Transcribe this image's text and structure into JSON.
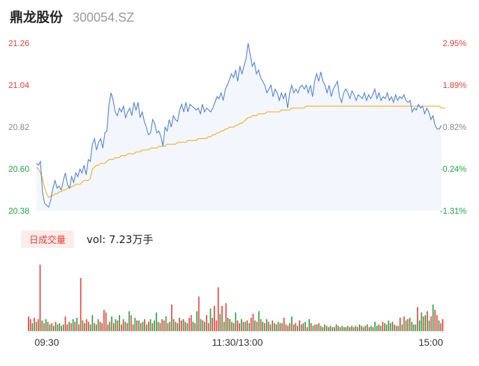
{
  "header": {
    "name": "鼎龙股份",
    "code": "300054.SZ"
  },
  "volume_header": {
    "tag": "日成交量",
    "text": "vol: 7.23万手"
  },
  "colors": {
    "price_line": "#4d7fd9",
    "avg_line": "#f0b429",
    "up": "#e8413a",
    "down": "#1aa843",
    "axis_label": "#888888"
  },
  "chart_data": [
    {
      "type": "line",
      "y_ticks_left": [
        "21.26",
        "21.04",
        "20.82",
        "20.60",
        "20.38"
      ],
      "y_ticks_right": [
        "2.95%",
        "1.89%",
        "0.82%",
        "-0.24%",
        "-1.31%"
      ],
      "right_tick_colors": [
        "#e8413a",
        "#e8413a",
        "#888888",
        "#1aa843",
        "#1aa843"
      ],
      "left_tick_colors": [
        "#e8413a",
        "#e8413a",
        "#888888",
        "#1aa843",
        "#1aa843"
      ],
      "ylim": [
        20.38,
        21.26
      ],
      "grid": false,
      "series": [
        {
          "values": [
            20.63,
            20.62,
            20.64,
            20.48,
            20.42,
            20.41,
            20.4,
            20.44,
            20.5,
            20.54,
            20.5,
            20.51,
            20.49,
            20.54,
            20.58,
            20.52,
            20.5,
            20.56,
            20.53,
            20.58,
            20.56,
            20.6,
            20.58,
            20.62,
            20.57,
            20.65,
            20.64,
            20.73,
            20.76,
            20.7,
            20.74,
            20.76,
            20.71,
            20.79,
            20.8,
            20.94,
            21.0,
            20.96,
            20.9,
            20.88,
            20.92,
            20.9,
            20.93,
            20.87,
            20.9,
            20.92,
            20.88,
            20.95,
            20.91,
            20.95,
            20.87,
            20.9,
            20.85,
            20.82,
            20.78,
            20.79,
            20.86,
            20.84,
            20.79,
            20.8,
            20.77,
            20.72,
            20.82,
            20.8,
            20.86,
            20.82,
            20.88,
            20.86,
            20.85,
            20.91,
            20.94,
            20.9,
            20.95,
            20.9,
            20.94,
            20.93,
            20.92,
            20.91,
            20.92,
            20.89,
            20.94,
            20.9,
            20.92,
            20.91,
            20.9,
            20.92,
            20.95,
            20.98,
            20.97,
            21.0,
            20.96,
            21.02,
            21.04,
            21.07,
            21.1,
            21.08,
            21.12,
            21.06,
            21.14,
            21.1,
            21.14,
            21.18,
            21.26,
            21.2,
            21.14,
            21.16,
            21.1,
            21.12,
            21.08,
            21.06,
            21.04,
            21.0,
            21.02,
            21.04,
            20.98,
            21.02,
            21.0,
            20.96,
            21.0,
            20.97,
            21.0,
            20.92,
            21.0,
            21.04,
            21.0,
            21.02,
            21.0,
            21.03,
            21.04,
            21.02,
            21.04,
            21.0,
            21.04,
            20.98,
            21.06,
            21.1,
            21.06,
            21.11,
            21.06,
            21.04,
            21.0,
            21.04,
            20.98,
            21.02,
            21.04,
            21.06,
            20.98,
            20.95,
            21.0,
            21.02,
            21.0,
            20.97,
            21.01,
            20.99,
            20.96,
            20.99,
            20.98,
            20.97,
            21.0,
            20.96,
            20.99,
            20.97,
            20.99,
            21.02,
            20.97,
            21.0,
            20.96,
            20.98,
            20.97,
            21.0,
            20.96,
            20.98,
            20.95,
            20.99,
            20.96,
            20.98,
            20.97,
            20.99,
            20.96,
            20.95,
            20.96,
            20.9,
            20.92,
            20.91,
            20.94,
            20.92,
            20.93,
            20.89,
            20.92,
            20.9,
            20.86,
            20.88,
            20.83,
            20.81,
            20.81,
            20.83
          ],
          "color": "#4d7fd9"
        },
        {
          "values": [
            20.61,
            20.6,
            20.58,
            20.55,
            20.5,
            20.47,
            20.45,
            20.46,
            20.46,
            20.47,
            20.47,
            20.48,
            20.48,
            20.49,
            20.49,
            20.5,
            20.5,
            20.51,
            20.51,
            20.52,
            20.52,
            20.52,
            20.53,
            20.54,
            20.54,
            20.54,
            20.55,
            20.6,
            20.61,
            20.62,
            20.62,
            20.63,
            20.63,
            20.63,
            20.64,
            20.65,
            20.65,
            20.65,
            20.66,
            20.66,
            20.66,
            20.67,
            20.67,
            20.67,
            20.68,
            20.68,
            20.68,
            20.68,
            20.69,
            20.69,
            20.69,
            20.7,
            20.7,
            20.7,
            20.7,
            20.71,
            20.71,
            20.71,
            20.71,
            20.72,
            20.72,
            20.72,
            20.72,
            20.73,
            20.73,
            20.73,
            20.73,
            20.73,
            20.74,
            20.74,
            20.74,
            20.74,
            20.74,
            20.75,
            20.75,
            20.75,
            20.75,
            20.75,
            20.76,
            20.76,
            20.76,
            20.76,
            20.76,
            20.77,
            20.77,
            20.78,
            20.78,
            20.79,
            20.79,
            20.8,
            20.8,
            20.81,
            20.81,
            20.82,
            20.82,
            20.82,
            20.83,
            20.83,
            20.84,
            20.84,
            20.85,
            20.86,
            20.87,
            20.87,
            20.88,
            20.88,
            20.88,
            20.89,
            20.89,
            20.89,
            20.89,
            20.9,
            20.9,
            20.9,
            20.9,
            20.9,
            20.9,
            20.9,
            20.91,
            20.91,
            20.91,
            20.91,
            20.91,
            20.92,
            20.92,
            20.92,
            20.92,
            20.92,
            20.92,
            20.92,
            20.93,
            20.93,
            20.93,
            20.93,
            20.93,
            20.93,
            20.93,
            20.93,
            20.93,
            20.93,
            20.93,
            20.93,
            20.93,
            20.93,
            20.93,
            20.93,
            20.93,
            20.93,
            20.93,
            20.93,
            20.93,
            20.93,
            20.93,
            20.93,
            20.93,
            20.93,
            20.93,
            20.93,
            20.93,
            20.93,
            20.93,
            20.93,
            20.93,
            20.93,
            20.93,
            20.93,
            20.93,
            20.93,
            20.93,
            20.93,
            20.93,
            20.93,
            20.93,
            20.93,
            20.93,
            20.93,
            20.93,
            20.93,
            20.93,
            20.93,
            20.93,
            20.93,
            20.93,
            20.93,
            20.93,
            20.93,
            20.93,
            20.93,
            20.93,
            20.93,
            20.93,
            20.93,
            20.93,
            20.93,
            20.93,
            20.92,
            20.92,
            20.92
          ],
          "color": "#f0b429"
        }
      ]
    },
    {
      "type": "bar",
      "x_ticks": [
        "09:30",
        "11:30/13:00",
        "15:00"
      ],
      "values": [
        22,
        18,
        12,
        20,
        14,
        18,
        100,
        16,
        12,
        18,
        14,
        10,
        12,
        8,
        14,
        10,
        12,
        8,
        10,
        22,
        10,
        14,
        12,
        18,
        14,
        20,
        10,
        80,
        16,
        12,
        18,
        14,
        10,
        24,
        12,
        10,
        18,
        14,
        12,
        32,
        28,
        10,
        14,
        22,
        12,
        18,
        16,
        24,
        10,
        18,
        14,
        12,
        30,
        24,
        10,
        20,
        16,
        16,
        12,
        14,
        18,
        10,
        14,
        18,
        12,
        16,
        28,
        14,
        12,
        18,
        16,
        22,
        12,
        14,
        40,
        18,
        14,
        12,
        20,
        16,
        18,
        14,
        12,
        20,
        24,
        14,
        12,
        30,
        52,
        18,
        16,
        14,
        24,
        12,
        34,
        20,
        38,
        16,
        66,
        26,
        38,
        14,
        42,
        20,
        18,
        14,
        12,
        28,
        16,
        12,
        18,
        14,
        14,
        16,
        12,
        20,
        26,
        16,
        14,
        30,
        18,
        14,
        12,
        18,
        14,
        10,
        16,
        12,
        10,
        14,
        12,
        12,
        20,
        10,
        8,
        12,
        22,
        10,
        12,
        8,
        16,
        10,
        12,
        14,
        6,
        18,
        12,
        8,
        10,
        10,
        12,
        8,
        6,
        10,
        8,
        6,
        8,
        6,
        6,
        10,
        8,
        6,
        8,
        6,
        6,
        8,
        6,
        8,
        6,
        8,
        6,
        10,
        8,
        6,
        8,
        10,
        6,
        8,
        6,
        14,
        8,
        10,
        8,
        14,
        12,
        10,
        16,
        12,
        14,
        10,
        8,
        8,
        20,
        10,
        22,
        16,
        18,
        20,
        14,
        10,
        10,
        36,
        16,
        28,
        22,
        24,
        30,
        16,
        22,
        40,
        32,
        24,
        16,
        12,
        18
      ],
      "colors": [
        "up",
        "up",
        "down",
        "up",
        "down",
        "up",
        "up",
        "down",
        "up",
        "down",
        "up",
        "down",
        "up",
        "down",
        "up",
        "down",
        "down",
        "up",
        "down",
        "up",
        "up",
        "down",
        "up",
        "down",
        "up",
        "down",
        "up",
        "up",
        "down",
        "up",
        "up",
        "up",
        "down",
        "down",
        "up",
        "down",
        "up",
        "down",
        "up",
        "up",
        "up",
        "down",
        "up",
        "down",
        "up",
        "down",
        "up",
        "down",
        "up",
        "up",
        "down",
        "up",
        "down",
        "up",
        "up",
        "down",
        "up",
        "down",
        "up",
        "down",
        "up",
        "down",
        "up",
        "down",
        "up",
        "down",
        "down",
        "up",
        "down",
        "up",
        "up",
        "down",
        "up",
        "down",
        "up",
        "down",
        "up",
        "down",
        "up",
        "up",
        "down",
        "up",
        "down",
        "up",
        "up",
        "down",
        "up",
        "down",
        "up",
        "down",
        "up",
        "down",
        "up",
        "up",
        "down",
        "up",
        "up",
        "up",
        "up",
        "down",
        "up",
        "down",
        "up",
        "down",
        "up",
        "down",
        "up",
        "down",
        "up",
        "up",
        "down",
        "up",
        "down",
        "up",
        "down",
        "up",
        "up",
        "down",
        "up",
        "down",
        "up",
        "down",
        "up",
        "down",
        "up",
        "down",
        "up",
        "down",
        "up",
        "down",
        "up",
        "down",
        "up",
        "up",
        "down",
        "up",
        "down",
        "up",
        "up",
        "down",
        "up",
        "down",
        "up",
        "down",
        "up",
        "down",
        "up",
        "down",
        "up",
        "down",
        "up",
        "down",
        "up",
        "down",
        "up",
        "down",
        "down",
        "up",
        "down",
        "up",
        "down",
        "up",
        "down",
        "down",
        "up",
        "down",
        "up",
        "down",
        "up",
        "down",
        "up",
        "down",
        "up",
        "down",
        "up",
        "down",
        "up",
        "down",
        "up",
        "down",
        "down",
        "up",
        "down",
        "up",
        "down",
        "up",
        "down",
        "down",
        "up",
        "down",
        "up",
        "down",
        "up",
        "down",
        "up",
        "down",
        "up",
        "down",
        "up",
        "down",
        "down",
        "up",
        "down",
        "down",
        "up",
        "down",
        "up",
        "down",
        "up",
        "down",
        "up",
        "up",
        "down",
        "up",
        "up"
      ]
    }
  ]
}
